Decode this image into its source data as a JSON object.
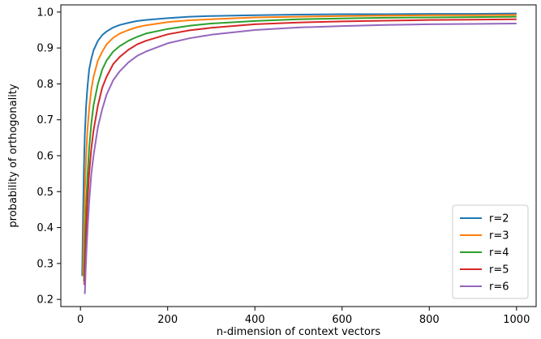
{
  "chart_data": {
    "type": "line",
    "title": "",
    "xlabel": "n-dimension of context vectors",
    "ylabel": "probability of orthogonality",
    "xlim": [
      -45,
      1045
    ],
    "ylim": [
      0.18,
      1.02
    ],
    "xticks": [
      0,
      200,
      400,
      600,
      800,
      1000
    ],
    "xtick_labels": [
      "0",
      "200",
      "400",
      "600",
      "800",
      "1000"
    ],
    "yticks": [
      0.2,
      0.3,
      0.4,
      0.5,
      0.6,
      0.7,
      0.8,
      0.9,
      1.0
    ],
    "ytick_labels": [
      "0.2",
      "0.3",
      "0.4",
      "0.5",
      "0.6",
      "0.7",
      "0.8",
      "0.9",
      "1.0"
    ],
    "grid": false,
    "legend_position": "lower-right",
    "series": [
      {
        "name": "r=2",
        "color": "#1f77b4",
        "x": [
          4,
          6,
          8,
          10,
          13,
          16,
          20,
          25,
          30,
          40,
          50,
          60,
          75,
          90,
          110,
          130,
          150,
          200,
          250,
          300,
          400,
          500,
          600,
          700,
          800,
          900,
          1000
        ],
        "y": [
          0.265,
          0.43,
          0.57,
          0.66,
          0.74,
          0.79,
          0.84,
          0.87,
          0.893,
          0.92,
          0.936,
          0.946,
          0.957,
          0.964,
          0.97,
          0.975,
          0.978,
          0.983,
          0.987,
          0.989,
          0.991,
          0.993,
          0.994,
          0.994,
          0.995,
          0.995,
          0.996
        ]
      },
      {
        "name": "r=3",
        "color": "#ff7f0e",
        "x": [
          6,
          8,
          10,
          13,
          16,
          20,
          25,
          30,
          40,
          50,
          60,
          75,
          90,
          110,
          130,
          150,
          200,
          250,
          300,
          400,
          500,
          600,
          700,
          800,
          900,
          1000
        ],
        "y": [
          0.265,
          0.4,
          0.5,
          0.6,
          0.67,
          0.73,
          0.785,
          0.82,
          0.865,
          0.89,
          0.91,
          0.928,
          0.94,
          0.95,
          0.958,
          0.963,
          0.972,
          0.977,
          0.98,
          0.985,
          0.987,
          0.989,
          0.99,
          0.991,
          0.991,
          0.992
        ]
      },
      {
        "name": "r=4",
        "color": "#2ca02c",
        "x": [
          8,
          10,
          13,
          16,
          20,
          25,
          30,
          40,
          50,
          60,
          75,
          90,
          110,
          130,
          150,
          200,
          250,
          300,
          400,
          500,
          600,
          700,
          800,
          900,
          1000
        ],
        "y": [
          0.25,
          0.35,
          0.46,
          0.54,
          0.62,
          0.69,
          0.74,
          0.8,
          0.84,
          0.865,
          0.89,
          0.905,
          0.92,
          0.931,
          0.94,
          0.953,
          0.962,
          0.968,
          0.975,
          0.98,
          0.982,
          0.984,
          0.985,
          0.986,
          0.987
        ]
      },
      {
        "name": "r=5",
        "color": "#d62728",
        "x": [
          9,
          11,
          13,
          16,
          20,
          25,
          30,
          40,
          50,
          60,
          75,
          90,
          110,
          130,
          150,
          200,
          250,
          300,
          400,
          500,
          600,
          700,
          800,
          900,
          1000
        ],
        "y": [
          0.24,
          0.32,
          0.39,
          0.47,
          0.55,
          0.62,
          0.67,
          0.74,
          0.79,
          0.82,
          0.855,
          0.875,
          0.895,
          0.91,
          0.92,
          0.938,
          0.949,
          0.956,
          0.966,
          0.971,
          0.974,
          0.976,
          0.978,
          0.979,
          0.98
        ]
      },
      {
        "name": "r=6",
        "color": "#9467bd",
        "x": [
          10,
          12,
          14,
          17,
          20,
          25,
          30,
          40,
          50,
          60,
          75,
          90,
          110,
          130,
          150,
          200,
          250,
          300,
          400,
          500,
          600,
          700,
          800,
          900,
          1000
        ],
        "y": [
          0.215,
          0.28,
          0.34,
          0.41,
          0.47,
          0.55,
          0.6,
          0.68,
          0.73,
          0.77,
          0.81,
          0.835,
          0.86,
          0.878,
          0.89,
          0.913,
          0.927,
          0.937,
          0.95,
          0.957,
          0.961,
          0.964,
          0.966,
          0.967,
          0.968
        ]
      }
    ]
  }
}
